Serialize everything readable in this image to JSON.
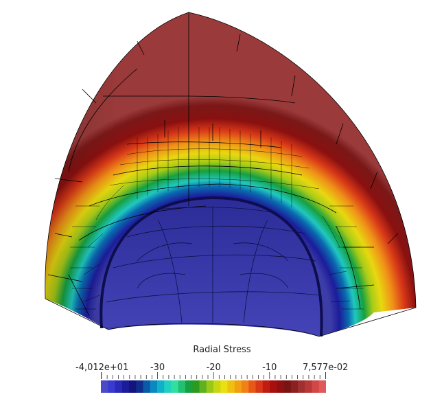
{
  "legend": {
    "title": "Radial Stress",
    "min_label": "-4,012e+01",
    "max_label": "7,577e-02",
    "ticks": [
      {
        "label": "-30",
        "value": -30
      },
      {
        "label": "-20",
        "value": -20
      },
      {
        "label": "-10",
        "value": -10
      }
    ],
    "range": [
      -40.12,
      0.07577
    ],
    "colors": [
      "#4b4bc8",
      "#3a3ad0",
      "#2a2ab8",
      "#1c1c9a",
      "#14147c",
      "#0f2d8a",
      "#0a5aa8",
      "#0a88c0",
      "#10b0c8",
      "#20d0c0",
      "#30e0a0",
      "#22c070",
      "#16a040",
      "#2a9a20",
      "#60b020",
      "#98c818",
      "#c8d810",
      "#e8e010",
      "#f0c010",
      "#f0a010",
      "#f08018",
      "#e85818",
      "#d83818",
      "#c01c14",
      "#a81010",
      "#901010",
      "#7a1414",
      "#8a2020",
      "#a03030",
      "#b83838",
      "#d04848",
      "#e05858"
    ]
  },
  "colors": {
    "background": "#ffffff",
    "outer_shell": "#8e3535",
    "inner_core": "#3d3da8",
    "mesh_lines": "#000000"
  }
}
